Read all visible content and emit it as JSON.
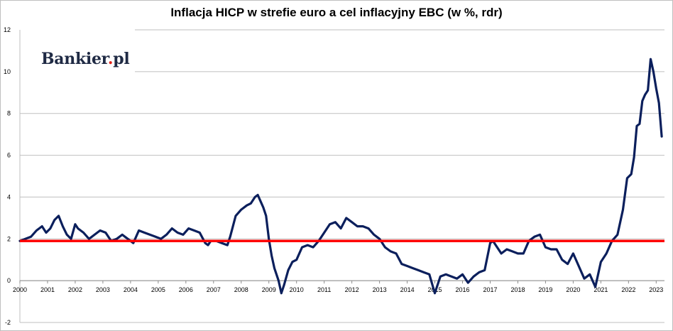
{
  "chart_data": {
    "type": "line",
    "title": "Inflacja HICP w strefie euro a cel inflacyjny EBC (w %, rdr)",
    "xlabel": "",
    "ylabel": "",
    "ylim": [
      -2,
      12
    ],
    "xlim": [
      2000,
      2023.3
    ],
    "y_ticks": [
      "-2",
      "0",
      "2",
      "4",
      "6",
      "8",
      "10",
      "12"
    ],
    "x_ticks": [
      "2000",
      "2001",
      "2002",
      "2003",
      "2004",
      "2005",
      "2006",
      "2007",
      "2008",
      "2009",
      "2010",
      "2011",
      "2012",
      "2013",
      "2014",
      "2015",
      "2016",
      "2017",
      "2018",
      "2019",
      "2020",
      "2021",
      "2022",
      "2023"
    ],
    "grid": "horizontal",
    "line_color": "#0b1f5c",
    "target_color": "#ff0000",
    "target_value": 1.9,
    "series": [
      {
        "x": [
          2000.0,
          2000.2,
          2000.4,
          2000.6,
          2000.8,
          2000.95,
          2001.1,
          2001.25,
          2001.4,
          2001.55,
          2001.7,
          2001.85,
          2002.0,
          2002.1,
          2002.3,
          2002.5,
          2002.7,
          2002.9,
          2003.1,
          2003.3,
          2003.5,
          2003.7,
          2003.9,
          2004.1,
          2004.3,
          2004.5,
          2004.7,
          2004.9,
          2005.1,
          2005.3,
          2005.5,
          2005.7,
          2005.9,
          2006.1,
          2006.3,
          2006.5,
          2006.7,
          2006.8,
          2006.9,
          2007.1,
          2007.3,
          2007.5,
          2007.6,
          2007.8,
          2008.0,
          2008.2,
          2008.35,
          2008.5,
          2008.6,
          2008.7,
          2008.8,
          2008.9,
          2009.0,
          2009.1,
          2009.2,
          2009.35,
          2009.45,
          2009.55,
          2009.7,
          2009.85,
          2010.0,
          2010.2,
          2010.4,
          2010.6,
          2010.8,
          2011.0,
          2011.2,
          2011.4,
          2011.6,
          2011.8,
          2012.0,
          2012.2,
          2012.4,
          2012.6,
          2012.8,
          2013.0,
          2013.2,
          2013.4,
          2013.6,
          2013.8,
          2014.0,
          2014.2,
          2014.4,
          2014.6,
          2014.8,
          2015.0,
          2015.2,
          2015.4,
          2015.6,
          2015.8,
          2016.0,
          2016.2,
          2016.4,
          2016.6,
          2016.8,
          2017.0,
          2017.1,
          2017.2,
          2017.4,
          2017.6,
          2017.8,
          2018.0,
          2018.2,
          2018.4,
          2018.6,
          2018.8,
          2019.0,
          2019.2,
          2019.4,
          2019.6,
          2019.8,
          2020.0,
          2020.2,
          2020.4,
          2020.6,
          2020.8,
          2021.0,
          2021.2,
          2021.4,
          2021.6,
          2021.8,
          2021.95,
          2022.1,
          2022.2,
          2022.3,
          2022.4,
          2022.5,
          2022.6,
          2022.7,
          2022.8,
          2022.9,
          2023.0,
          2023.1,
          2023.2
        ],
        "values": [
          1.9,
          2.0,
          2.1,
          2.4,
          2.6,
          2.3,
          2.5,
          2.9,
          3.1,
          2.6,
          2.2,
          2.0,
          2.7,
          2.5,
          2.3,
          2.0,
          2.2,
          2.4,
          2.3,
          1.9,
          2.0,
          2.2,
          2.0,
          1.8,
          2.4,
          2.3,
          2.2,
          2.1,
          2.0,
          2.2,
          2.5,
          2.3,
          2.2,
          2.5,
          2.4,
          2.3,
          1.8,
          1.7,
          1.9,
          1.9,
          1.8,
          1.7,
          2.1,
          3.1,
          3.4,
          3.6,
          3.7,
          4.0,
          4.1,
          3.8,
          3.5,
          3.1,
          2.0,
          1.2,
          0.6,
          0.0,
          -0.6,
          -0.2,
          0.5,
          0.9,
          1.0,
          1.6,
          1.7,
          1.6,
          1.9,
          2.3,
          2.7,
          2.8,
          2.5,
          3.0,
          2.8,
          2.6,
          2.6,
          2.5,
          2.2,
          2.0,
          1.6,
          1.4,
          1.3,
          0.8,
          0.7,
          0.6,
          0.5,
          0.4,
          0.3,
          -0.6,
          0.2,
          0.3,
          0.2,
          0.1,
          0.3,
          -0.1,
          0.2,
          0.4,
          0.5,
          1.8,
          1.9,
          1.7,
          1.3,
          1.5,
          1.4,
          1.3,
          1.3,
          1.9,
          2.1,
          2.2,
          1.6,
          1.5,
          1.5,
          1.0,
          0.8,
          1.3,
          0.7,
          0.1,
          0.3,
          -0.3,
          0.9,
          1.3,
          1.9,
          2.2,
          3.4,
          4.9,
          5.1,
          5.9,
          7.4,
          7.5,
          8.6,
          8.9,
          9.1,
          10.6,
          10.0,
          9.2,
          8.5,
          6.9
        ]
      }
    ]
  },
  "logo": {
    "text_main": "Bankier",
    "text_dot": ".",
    "text_tld": "pl"
  }
}
